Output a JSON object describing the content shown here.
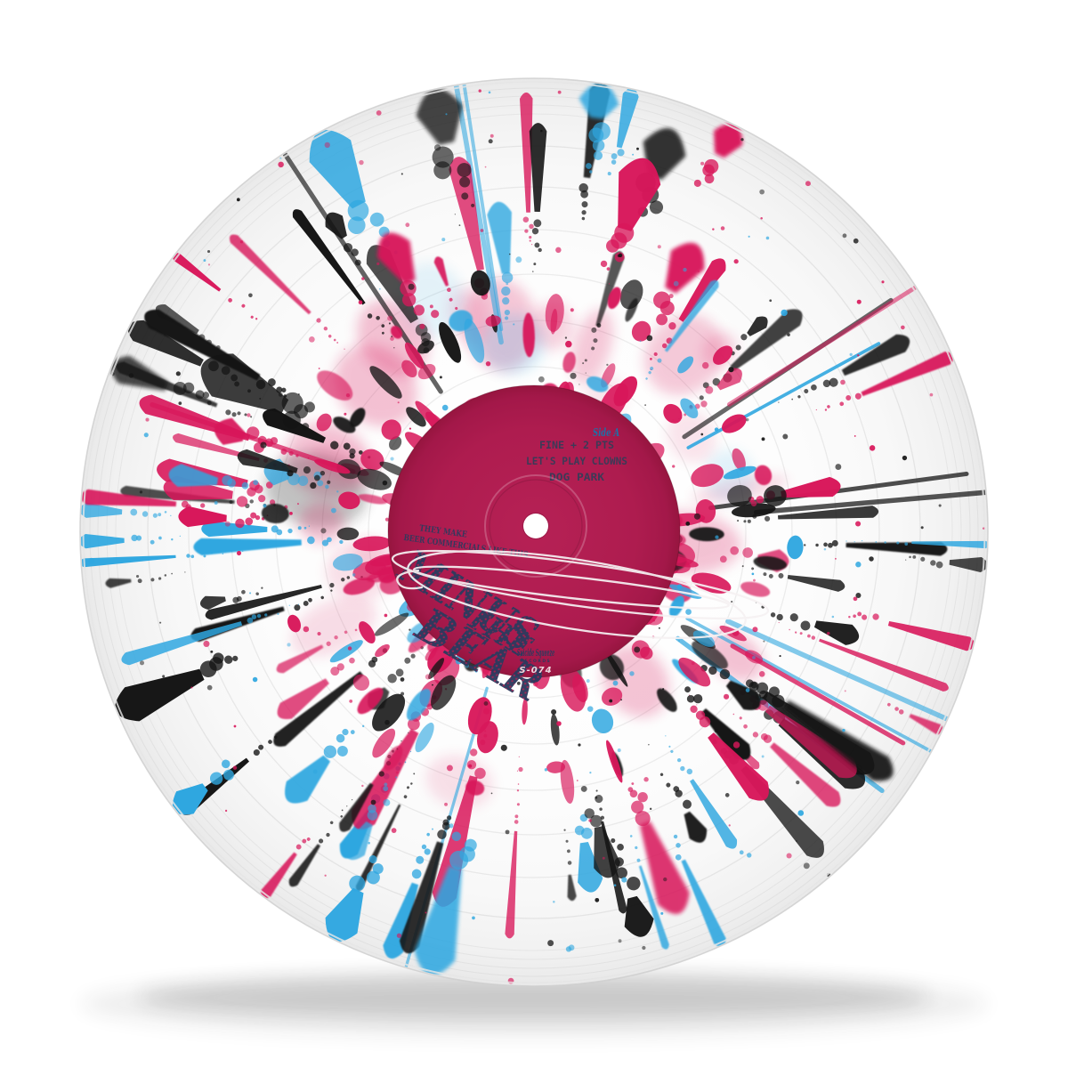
{
  "photo": {
    "background": "#ffffff",
    "subject": "clear splatter vinyl record, Side A facing up"
  },
  "record": {
    "side_label": "Side A",
    "tracks": [
      "FINE + 2 PTS",
      "LET'S PLAY CLOWNS",
      "DOG PARK"
    ],
    "tagline": {
      "line1": "THEY MAKE",
      "line2": "BEER COMMERCIALS LIKE THIS"
    },
    "band_name": {
      "line1": "MINUS",
      "line2": "THE",
      "line3": "BEAR"
    },
    "label_logo": {
      "script": "Suicide Squeeze",
      "word": "RECORDS",
      "catalog": "S-074"
    },
    "colors": {
      "label": "#ae1c4f",
      "side_label_text": "#1f6fa6",
      "track_text": "#333d58",
      "band_text": "#2e3a5e",
      "logo_text": "#2e3a5e",
      "catalog_text": "#eed8de",
      "scribble": "#f6f2f3"
    }
  },
  "artwork": {
    "groove_ring_radii": [
      186,
      238,
      290,
      340,
      388,
      434,
      470,
      480,
      490,
      499,
      506
    ],
    "splatter": {
      "seed": 7,
      "colors": [
        {
          "hex": "#d8175a",
          "weight": 0.42
        },
        {
          "hex": "#141414",
          "weight": 0.33
        },
        {
          "hex": "#2fa7e0",
          "weight": 0.25
        }
      ],
      "haze": 26,
      "inner_blobs": 155,
      "streaks": 92,
      "big_blobs": 16,
      "spray_dots": 260,
      "flings": 14
    }
  }
}
